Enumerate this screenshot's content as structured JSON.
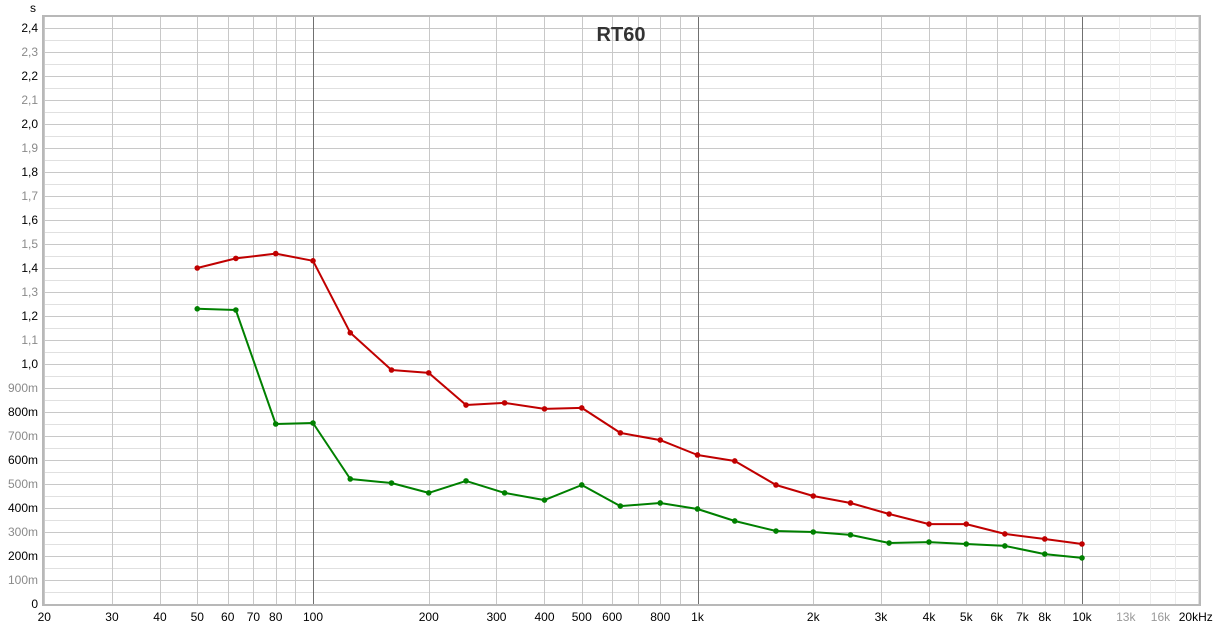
{
  "chart_data": {
    "type": "line",
    "title": "RT60",
    "ylabel": "s",
    "xlabel": "",
    "x_scale": "log",
    "xlim": [
      20,
      20000
    ],
    "ylim": [
      0,
      2.45
    ],
    "grid": true,
    "x": [
      50,
      63,
      80,
      100,
      125,
      160,
      200,
      250,
      315,
      400,
      500,
      630,
      800,
      1000,
      1250,
      1600,
      2000,
      2500,
      3150,
      4000,
      5000,
      6300,
      8000,
      10000
    ],
    "series": [
      {
        "color": "#c00000",
        "values": [
          1.4,
          1.44,
          1.46,
          1.43,
          1.13,
          0.975,
          0.963,
          0.829,
          0.838,
          0.813,
          0.817,
          0.713,
          0.683,
          0.621,
          0.596,
          0.496,
          0.45,
          0.421,
          0.375,
          0.333,
          0.333,
          0.292,
          0.271,
          0.25
        ]
      },
      {
        "color": "#008000",
        "values": [
          1.23,
          1.225,
          0.75,
          0.754,
          0.521,
          0.504,
          0.463,
          0.513,
          0.463,
          0.433,
          0.496,
          0.408,
          0.421,
          0.396,
          0.346,
          0.304,
          0.3,
          0.288,
          0.254,
          0.258,
          0.25,
          0.242,
          0.208,
          0.192
        ]
      }
    ],
    "y_ticks": [
      {
        "v": 0,
        "label": "0"
      },
      {
        "v": 0.1,
        "label": "100m"
      },
      {
        "v": 0.2,
        "label": "200m"
      },
      {
        "v": 0.3,
        "label": "300m"
      },
      {
        "v": 0.4,
        "label": "400m"
      },
      {
        "v": 0.5,
        "label": "500m"
      },
      {
        "v": 0.6,
        "label": "600m"
      },
      {
        "v": 0.7,
        "label": "700m"
      },
      {
        "v": 0.8,
        "label": "800m"
      },
      {
        "v": 0.9,
        "label": "900m"
      },
      {
        "v": 1.0,
        "label": "1,0"
      },
      {
        "v": 1.1,
        "label": "1,1"
      },
      {
        "v": 1.2,
        "label": "1,2"
      },
      {
        "v": 1.3,
        "label": "1,3"
      },
      {
        "v": 1.4,
        "label": "1,4"
      },
      {
        "v": 1.5,
        "label": "1,5"
      },
      {
        "v": 1.6,
        "label": "1,6"
      },
      {
        "v": 1.7,
        "label": "1,7"
      },
      {
        "v": 1.8,
        "label": "1,8"
      },
      {
        "v": 1.9,
        "label": "1,9"
      },
      {
        "v": 2.0,
        "label": "2,0"
      },
      {
        "v": 2.1,
        "label": "2,1"
      },
      {
        "v": 2.2,
        "label": "2,2"
      },
      {
        "v": 2.3,
        "label": "2,3"
      },
      {
        "v": 2.4,
        "label": "2,4"
      }
    ],
    "x_ticks": [
      {
        "v": 20,
        "label": "20"
      },
      {
        "v": 30,
        "label": "30"
      },
      {
        "v": 40,
        "label": "40"
      },
      {
        "v": 50,
        "label": "50"
      },
      {
        "v": 60,
        "label": "60"
      },
      {
        "v": 70,
        "label": "70"
      },
      {
        "v": 80,
        "label": "80"
      },
      {
        "v": 100,
        "label": "100"
      },
      {
        "v": 200,
        "label": "200"
      },
      {
        "v": 300,
        "label": "300"
      },
      {
        "v": 400,
        "label": "400"
      },
      {
        "v": 500,
        "label": "500"
      },
      {
        "v": 600,
        "label": "600"
      },
      {
        "v": 800,
        "label": "800"
      },
      {
        "v": 1000,
        "label": "1k"
      },
      {
        "v": 2000,
        "label": "2k"
      },
      {
        "v": 3000,
        "label": "3k"
      },
      {
        "v": 4000,
        "label": "4k"
      },
      {
        "v": 5000,
        "label": "5k"
      },
      {
        "v": 6000,
        "label": "6k"
      },
      {
        "v": 7000,
        "label": "7k"
      },
      {
        "v": 8000,
        "label": "8k"
      },
      {
        "v": 10000,
        "label": "10k"
      },
      {
        "v": 13000,
        "label": "13k"
      },
      {
        "v": 16000,
        "label": "16k"
      },
      {
        "v": 20000,
        "label": "20kHz"
      }
    ]
  }
}
